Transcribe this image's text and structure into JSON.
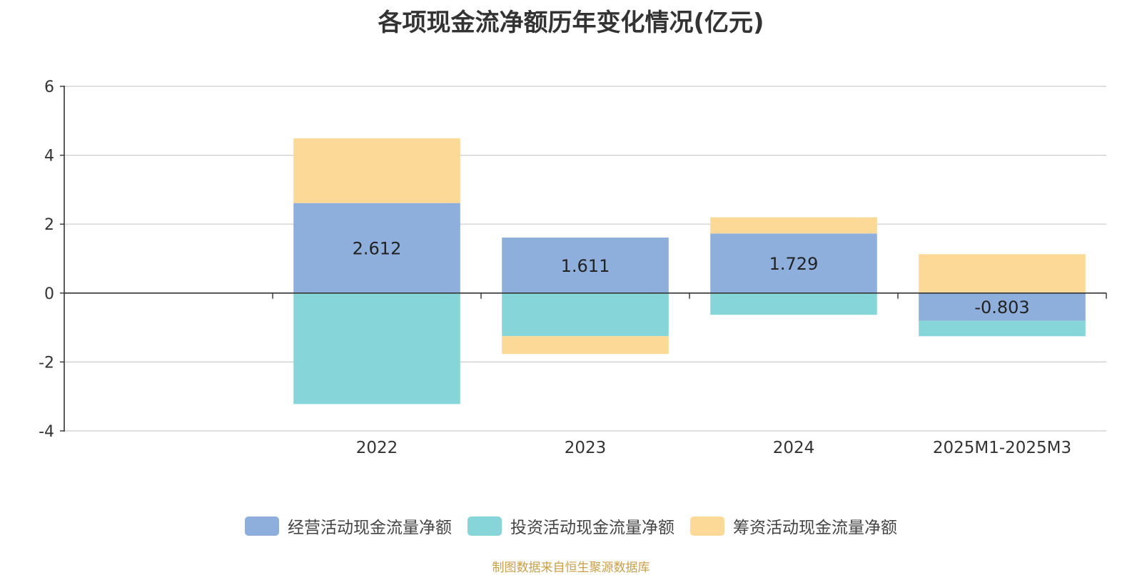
{
  "chart_data": {
    "type": "bar",
    "stacked": true,
    "title": "各项现金流净额历年变化情况(亿元)",
    "xlabel": "",
    "ylabel": "",
    "categories": [
      "",
      "2022",
      "2023",
      "2024",
      "2025M1-2025M3"
    ],
    "ylim": [
      -4,
      6
    ],
    "yticks": [
      6,
      4,
      2,
      0,
      -2,
      -4
    ],
    "grid": true,
    "legend_position": "bottom",
    "series": [
      {
        "name": "经营活动现金流量净额",
        "color": "#8eaedb",
        "values": [
          null,
          2.612,
          1.611,
          1.729,
          -0.803
        ],
        "labels": [
          "",
          "2.612",
          "1.611",
          "1.729",
          "-0.803"
        ]
      },
      {
        "name": "投资活动现金流量净额",
        "color": "#86d6d9",
        "values": [
          null,
          -3.22,
          -1.25,
          -0.63,
          -0.45
        ]
      },
      {
        "name": "筹资活动现金流量净额",
        "color": "#fdd998",
        "values": [
          null,
          1.88,
          -0.52,
          0.47,
          1.13
        ]
      }
    ]
  },
  "footer": {
    "source": "制图数据来自恒生聚源数据库"
  }
}
